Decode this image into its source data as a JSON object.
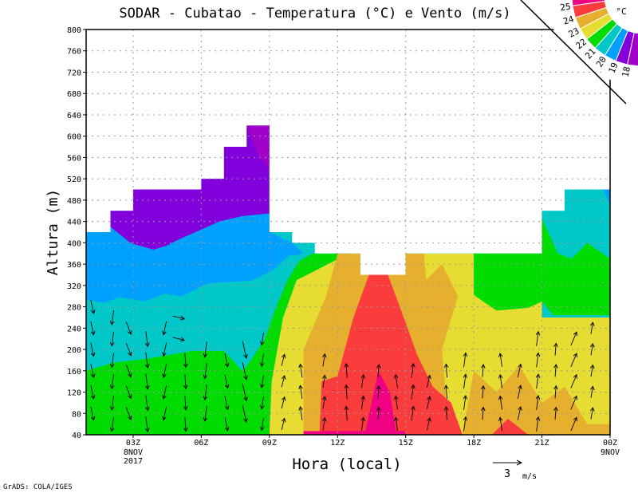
{
  "chart_data": {
    "type": "heatmap",
    "title": "SODAR - Cubatao - Temperatura (°C) e Vento (m/s)",
    "xlabel": "Hora (local)",
    "ylabel": "Altura (m)",
    "xlim": [
      0.93,
      24
    ],
    "ylim": [
      40,
      800
    ],
    "yticks": [
      40,
      80,
      120,
      160,
      200,
      240,
      280,
      320,
      360,
      400,
      440,
      480,
      520,
      560,
      600,
      640,
      680,
      720,
      760,
      800
    ],
    "xticks": [
      {
        "hour": 3,
        "label": "03Z",
        "sub": [
          "8NOV",
          "2017"
        ]
      },
      {
        "hour": 6,
        "label": "06Z",
        "sub": []
      },
      {
        "hour": 9,
        "label": "09Z",
        "sub": []
      },
      {
        "hour": 12,
        "label": "12Z",
        "sub": []
      },
      {
        "hour": 15,
        "label": "15Z",
        "sub": []
      },
      {
        "hour": 18,
        "label": "18Z",
        "sub": []
      },
      {
        "hour": 21,
        "label": "21Z",
        "sub": []
      },
      {
        "hour": 24,
        "label": "00Z",
        "sub": [
          "9NOV"
        ]
      }
    ],
    "grid": true,
    "colorbar": {
      "unit": "°C",
      "levels": [
        18,
        19,
        20,
        21,
        22,
        23,
        24,
        25
      ],
      "colors": [
        "#a000c8",
        "#8200dc",
        "#00a0ff",
        "#00c8c8",
        "#00dc00",
        "#e6dc32",
        "#e6af2d",
        "#fa3c3c",
        "#f00082"
      ]
    },
    "data_top": [
      [
        1,
        2,
        420
      ],
      [
        2,
        3,
        460
      ],
      [
        3,
        6,
        500
      ],
      [
        6,
        7,
        520
      ],
      [
        7,
        8,
        580
      ],
      [
        8,
        9,
        620
      ],
      [
        9,
        10,
        420
      ],
      [
        10,
        11,
        400
      ],
      [
        11,
        13,
        380
      ],
      [
        13,
        15,
        340
      ],
      [
        15,
        21,
        380
      ],
      [
        21,
        22,
        460
      ],
      [
        22,
        24,
        500
      ]
    ],
    "regions": [
      {
        "range": "20-21",
        "color": "#00c8c8",
        "poly": [
          [
            0.93,
            40
          ],
          [
            24,
            40
          ],
          [
            24,
            800
          ],
          [
            0.93,
            800
          ]
        ]
      },
      {
        "range": "18-19",
        "color": "#8200dc",
        "poly": [
          [
            0.93,
            800
          ],
          [
            9,
            800
          ],
          [
            9,
            455
          ],
          [
            7.8,
            450
          ],
          [
            6.8,
            440
          ],
          [
            5.8,
            421
          ],
          [
            5,
            406
          ],
          [
            4.5,
            395
          ],
          [
            3.9,
            387
          ],
          [
            2.9,
            399
          ],
          [
            2,
            430
          ],
          [
            0.93,
            430
          ]
        ]
      },
      {
        "range": "<18",
        "color": "#a000c8",
        "poly": [
          [
            8,
            620
          ],
          [
            9,
            620
          ],
          [
            9,
            540
          ],
          [
            8.5,
            565
          ],
          [
            8.2,
            600
          ]
        ]
      },
      {
        "range": "19-20",
        "color": "#00a0ff",
        "poly": [
          [
            0.93,
            430
          ],
          [
            2,
            430
          ],
          [
            2.9,
            399
          ],
          [
            3.9,
            387
          ],
          [
            4.5,
            395
          ],
          [
            5,
            406
          ],
          [
            5.8,
            421
          ],
          [
            6.8,
            440
          ],
          [
            7.8,
            450
          ],
          [
            9,
            455
          ],
          [
            9,
            420
          ],
          [
            10,
            400
          ],
          [
            10.5,
            380
          ],
          [
            10.2,
            377
          ],
          [
            9.9,
            377
          ],
          [
            9.1,
            347
          ],
          [
            8.2,
            329
          ],
          [
            6.3,
            324
          ],
          [
            5.1,
            299
          ],
          [
            4.4,
            305
          ],
          [
            3.5,
            290
          ],
          [
            2.4,
            298
          ],
          [
            1.7,
            287
          ],
          [
            0.93,
            294
          ]
        ]
      },
      {
        "range": "21-22",
        "color": "#00dc00",
        "poly": [
          [
            0.93,
            40
          ],
          [
            0.93,
            160
          ],
          [
            2.1,
            175
          ],
          [
            3.5,
            182
          ],
          [
            5.6,
            197
          ],
          [
            7,
            197
          ],
          [
            7.8,
            160
          ],
          [
            8.2,
            180
          ],
          [
            8.8,
            220
          ],
          [
            9.3,
            280
          ],
          [
            9.8,
            330
          ],
          [
            10.3,
            365
          ],
          [
            10.9,
            380
          ],
          [
            12.5,
            380
          ],
          [
            10.2,
            330
          ],
          [
            9.6,
            260
          ],
          [
            9.1,
            140
          ],
          [
            9,
            40
          ]
        ]
      },
      {
        "range": "22-23",
        "color": "#e6dc32",
        "poly": [
          [
            9,
            40
          ],
          [
            9.1,
            140
          ],
          [
            9.6,
            260
          ],
          [
            10.2,
            330
          ],
          [
            12.5,
            380
          ],
          [
            21,
            380
          ],
          [
            21,
            260
          ],
          [
            24,
            260
          ],
          [
            24,
            40
          ]
        ]
      },
      {
        "range": "21-22",
        "color": "#00dc00",
        "poly": [
          [
            18,
            380
          ],
          [
            18,
            302
          ],
          [
            19,
            273
          ],
          [
            20.4,
            278
          ],
          [
            21,
            290
          ],
          [
            21.5,
            264
          ],
          [
            24,
            264
          ],
          [
            24,
            380
          ],
          [
            21,
            460
          ]
        ]
      },
      {
        "range": "20-21",
        "color": "#00c8c8",
        "poly": [
          [
            21,
            460
          ],
          [
            22,
            460
          ],
          [
            22,
            500
          ],
          [
            24,
            500
          ],
          [
            24,
            370
          ],
          [
            23,
            400
          ],
          [
            22.3,
            370
          ],
          [
            21.7,
            380
          ],
          [
            21,
            445
          ]
        ]
      },
      {
        "range": "19-20",
        "color": "#00a0ff",
        "poly": [
          [
            23.7,
            500
          ],
          [
            24,
            500
          ],
          [
            24,
            470
          ]
        ]
      },
      {
        "range": "23-24",
        "color": "#e6af2d",
        "poly": [
          [
            10.5,
            40
          ],
          [
            10.5,
            200
          ],
          [
            11.5,
            300
          ],
          [
            12,
            380
          ],
          [
            15.8,
            380
          ],
          [
            15.9,
            330
          ],
          [
            16.6,
            360
          ],
          [
            17.3,
            300
          ],
          [
            16.6,
            200
          ],
          [
            16.8,
            100
          ],
          [
            17.5,
            40
          ]
        ]
      },
      {
        "range": "23-24",
        "color": "#e6af2d",
        "poly": [
          [
            17.5,
            40
          ],
          [
            18,
            160
          ],
          [
            19,
            120
          ],
          [
            20,
            170
          ],
          [
            21,
            100
          ],
          [
            22,
            130
          ],
          [
            23,
            60
          ],
          [
            24,
            60
          ],
          [
            24,
            40
          ]
        ]
      },
      {
        "range": "24-25",
        "color": "#fa3c3c",
        "poly": [
          [
            11.2,
            40
          ],
          [
            11.3,
            140
          ],
          [
            12,
            150
          ],
          [
            12.7,
            260
          ],
          [
            13.4,
            342
          ],
          [
            14.2,
            342
          ],
          [
            15,
            250
          ],
          [
            15.5,
            190
          ],
          [
            16.2,
            130
          ],
          [
            17,
            100
          ],
          [
            17.5,
            40
          ]
        ]
      },
      {
        "range": "24-25",
        "color": "#fa3c3c",
        "poly": [
          [
            18.8,
            40
          ],
          [
            19.5,
            70
          ],
          [
            20.4,
            40
          ]
        ]
      },
      {
        "range": ">25",
        "color": "#f00082",
        "poly": [
          [
            13.2,
            40
          ],
          [
            13.8,
            160
          ],
          [
            14.3,
            120
          ],
          [
            14.6,
            40
          ]
        ]
      },
      {
        "range": ">25",
        "color": "#f00082",
        "poly": [
          [
            10.5,
            40
          ],
          [
            10.5,
            47
          ],
          [
            15,
            47
          ],
          [
            15,
            40
          ]
        ]
      }
    ],
    "wind_columns": [
      {
        "hour": 1.2,
        "u": 0.3,
        "v": -1.4,
        "alts": [
          80,
          120,
          160,
          200,
          240,
          280
        ]
      },
      {
        "hour": 2.1,
        "u": -0.2,
        "v": -1.5,
        "alts": [
          60,
          100,
          140,
          180,
          220,
          260
        ]
      },
      {
        "hour": 2.8,
        "u": 0.5,
        "v": -1.3,
        "alts": [
          80,
          120,
          160,
          200,
          240
        ]
      },
      {
        "hour": 3.6,
        "u": 0.2,
        "v": -1.6,
        "alts": [
          60,
          100,
          140,
          180,
          220
        ]
      },
      {
        "hour": 4.4,
        "u": -0.3,
        "v": -1.4,
        "alts": [
          80,
          120,
          160,
          200,
          240
        ]
      },
      {
        "hour": 5.0,
        "u": 1.2,
        "v": -0.3,
        "alts": [
          220,
          260
        ]
      },
      {
        "hour": 5.3,
        "u": 0.1,
        "v": -1.5,
        "alts": [
          60,
          100,
          140,
          180
        ]
      },
      {
        "hour": 6.2,
        "u": -0.2,
        "v": -1.6,
        "alts": [
          80,
          120,
          160,
          200
        ]
      },
      {
        "hour": 7.1,
        "u": 0.3,
        "v": -1.4,
        "alts": [
          60,
          100,
          140,
          180
        ]
      },
      {
        "hour": 7.9,
        "u": 0.4,
        "v": -1.8,
        "alts": [
          80,
          120,
          160,
          200
        ]
      },
      {
        "hour": 8.7,
        "u": -0.2,
        "v": -1.3,
        "alts": [
          60,
          100,
          140,
          180,
          220
        ]
      },
      {
        "hour": 9.6,
        "u": 0.3,
        "v": 1.2,
        "alts": [
          60,
          100,
          140,
          180
        ]
      },
      {
        "hour": 10.4,
        "u": -0.2,
        "v": 1.4,
        "alts": [
          80,
          120,
          160
        ]
      },
      {
        "hour": 11.4,
        "u": 0.2,
        "v": 1.3,
        "alts": [
          60,
          100,
          140,
          180
        ]
      },
      {
        "hour": 12.4,
        "u": -0.1,
        "v": 1.5,
        "alts": [
          80,
          120,
          160
        ]
      },
      {
        "hour": 13.1,
        "u": 0.2,
        "v": 1.4,
        "alts": [
          60,
          100,
          140
        ]
      },
      {
        "hour": 13.8,
        "u": 0.1,
        "v": 1.3,
        "alts": [
          80,
          120,
          160
        ]
      },
      {
        "hour": 14.6,
        "u": -0.2,
        "v": 1.4,
        "alts": [
          60,
          100,
          140
        ]
      },
      {
        "hour": 15.3,
        "u": 0.2,
        "v": 1.5,
        "alts": [
          80,
          120,
          160
        ]
      },
      {
        "hour": 16.0,
        "u": 0.3,
        "v": 1.3,
        "alts": [
          60,
          100,
          140
        ]
      },
      {
        "hour": 16.8,
        "u": -0.1,
        "v": 1.4,
        "alts": [
          80,
          120,
          160
        ]
      },
      {
        "hour": 17.6,
        "u": 0.2,
        "v": 1.5,
        "alts": [
          60,
          100,
          140,
          180
        ]
      },
      {
        "hour": 18.4,
        "u": 0.1,
        "v": 1.3,
        "alts": [
          80,
          120,
          160
        ]
      },
      {
        "hour": 19.2,
        "u": -0.2,
        "v": 1.4,
        "alts": [
          60,
          100,
          140,
          180
        ]
      },
      {
        "hour": 20.0,
        "u": 0.3,
        "v": 1.4,
        "alts": [
          80,
          120,
          160
        ]
      },
      {
        "hour": 20.8,
        "u": 0.2,
        "v": 1.5,
        "alts": [
          60,
          100,
          140,
          180,
          220
        ]
      },
      {
        "hour": 21.6,
        "u": 0.1,
        "v": 1.3,
        "alts": [
          80,
          120,
          160,
          200
        ]
      },
      {
        "hour": 22.4,
        "u": 0.6,
        "v": 1.4,
        "alts": [
          60,
          100,
          140,
          180,
          220
        ]
      },
      {
        "hour": 23.2,
        "u": 0.2,
        "v": 1.2,
        "alts": [
          80,
          120,
          160,
          200,
          240
        ]
      }
    ],
    "wind_reference": {
      "value": 3,
      "label": "3",
      "unit": "m/s"
    }
  },
  "footer": "GrADS: COLA/IGES"
}
